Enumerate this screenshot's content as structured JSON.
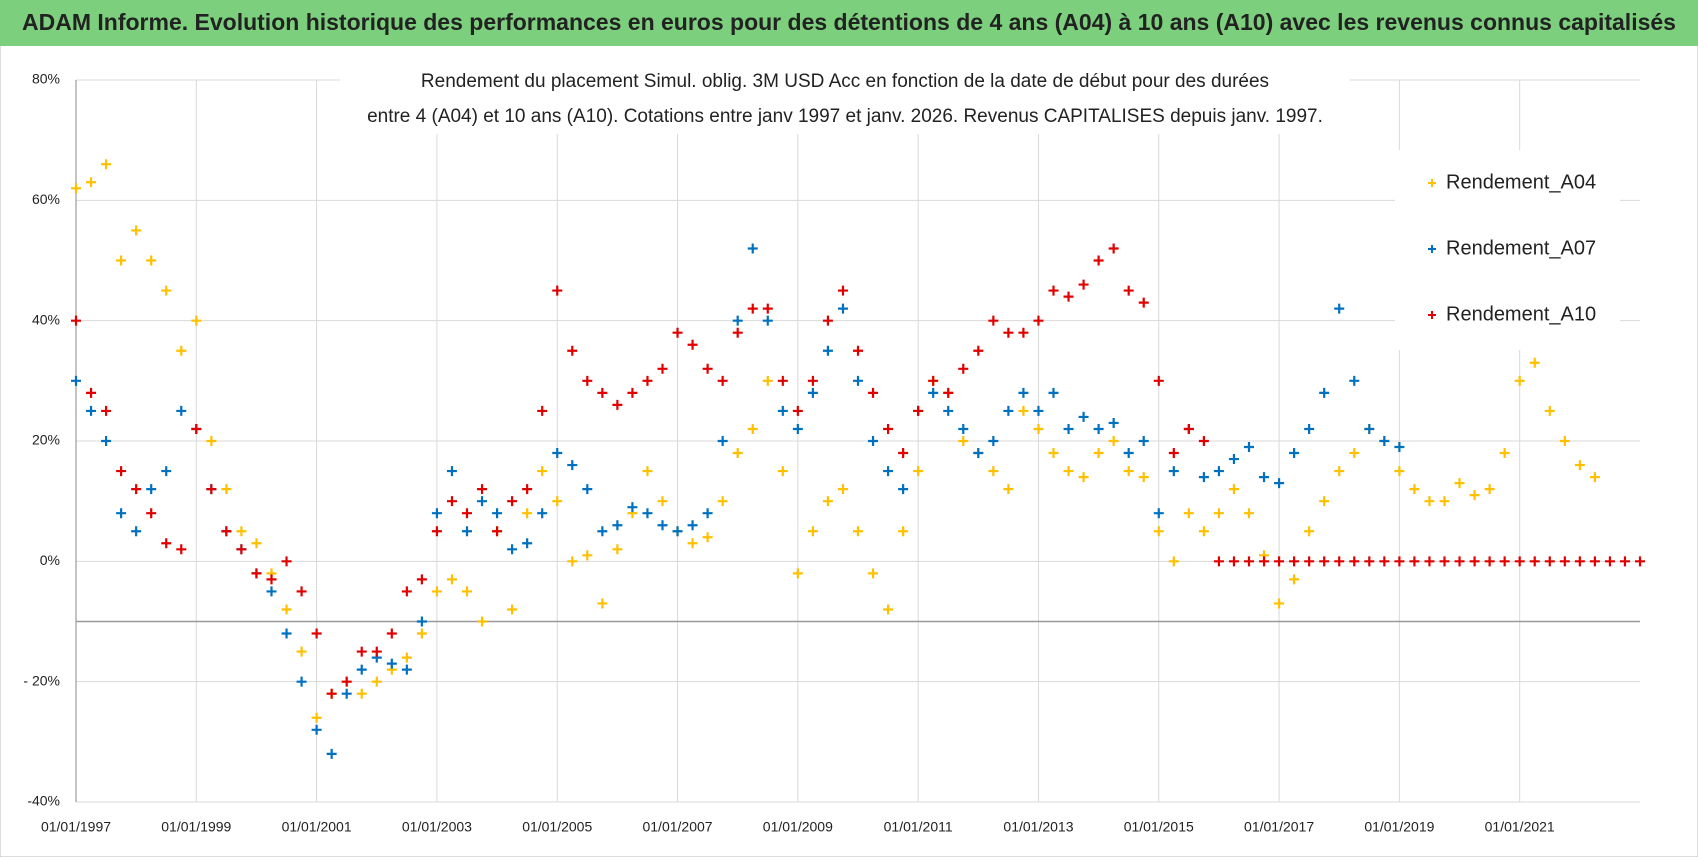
{
  "header": {
    "title": "ADAM Informe. Evolution historique des performances en euros pour des détentions de 4 ans (A04) à 10 ans (A10) avec les revenus connus capitalisés"
  },
  "chart_data": {
    "type": "scatter",
    "subtitle": [
      "Rendement du placement Simul. oblig. 3M USD Acc en fonction de la date de début pour des durées",
      "entre 4 (A04) et 10 ans (A10). Cotations entre janv 1997 et janv. 2026. Revenus CAPITALISES depuis janv. 1997."
    ],
    "x": [
      1997,
      1997.25,
      1997.5,
      1997.75,
      1998,
      1998.25,
      1998.5,
      1998.75,
      1999,
      1999.25,
      1999.5,
      1999.75,
      2000,
      2000.25,
      2000.5,
      2000.75,
      2001,
      2001.25,
      2001.5,
      2001.75,
      2002,
      2002.25,
      2002.5,
      2002.75,
      2003,
      2003.25,
      2003.5,
      2003.75,
      2004,
      2004.25,
      2004.5,
      2004.75,
      2005,
      2005.25,
      2005.5,
      2005.75,
      2006,
      2006.25,
      2006.5,
      2006.75,
      2007,
      2007.25,
      2007.5,
      2007.75,
      2008,
      2008.25,
      2008.5,
      2008.75,
      2009,
      2009.25,
      2009.5,
      2009.75,
      2010,
      2010.25,
      2010.5,
      2010.75,
      2011,
      2011.25,
      2011.5,
      2011.75,
      2012,
      2012.25,
      2012.5,
      2012.75,
      2013,
      2013.25,
      2013.5,
      2013.75,
      2014,
      2014.25,
      2014.5,
      2014.75,
      2015,
      2015.25,
      2015.5,
      2015.75,
      2016,
      2016.25,
      2016.5,
      2016.75,
      2017,
      2017.25,
      2017.5,
      2017.75,
      2018,
      2018.25,
      2018.5,
      2018.75,
      2019,
      2019.25,
      2019.5,
      2019.75,
      2020,
      2020.25,
      2020.5,
      2020.75,
      2021,
      2021.25,
      2021.5,
      2021.75,
      2022,
      2022.25,
      2022.5,
      2022.75,
      2023
    ],
    "series": [
      {
        "name": "Rendement_A04",
        "color": "#ffc000",
        "values": [
          62,
          63,
          66,
          50,
          55,
          50,
          45,
          35,
          40,
          20,
          12,
          5,
          3,
          -2,
          -8,
          -15,
          -26,
          -22,
          -20,
          -22,
          -20,
          -18,
          -16,
          -12,
          -5,
          -3,
          -5,
          -10,
          5,
          -8,
          8,
          15,
          10,
          0,
          1,
          -7,
          2,
          8,
          15,
          10,
          5,
          3,
          4,
          10,
          18,
          22,
          30,
          15,
          -2,
          5,
          10,
          12,
          5,
          -2,
          -8,
          5,
          15,
          30,
          28,
          20,
          18,
          15,
          12,
          25,
          22,
          18,
          15,
          14,
          18,
          20,
          15,
          14,
          5,
          0,
          8,
          5,
          8,
          12,
          8,
          1,
          -7,
          -3,
          5,
          10,
          15,
          18,
          22,
          20,
          15,
          12,
          10,
          10,
          13,
          11,
          12,
          18,
          30,
          33,
          25,
          20,
          16,
          14,
          null,
          null,
          null
        ]
      },
      {
        "name": "Rendement_A07",
        "color": "#0070c0",
        "values": [
          30,
          25,
          20,
          8,
          5,
          12,
          15,
          25,
          22,
          12,
          5,
          2,
          -2,
          -5,
          -12,
          -20,
          -28,
          -32,
          -22,
          -18,
          -16,
          -17,
          -18,
          -10,
          8,
          15,
          5,
          10,
          8,
          2,
          3,
          8,
          18,
          16,
          12,
          5,
          6,
          9,
          8,
          6,
          5,
          6,
          8,
          20,
          40,
          52,
          40,
          25,
          22,
          28,
          35,
          42,
          30,
          20,
          15,
          12,
          25,
          28,
          25,
          22,
          18,
          20,
          25,
          28,
          25,
          28,
          22,
          24,
          22,
          23,
          18,
          20,
          8,
          15,
          22,
          14,
          15,
          17,
          19,
          14,
          13,
          18,
          22,
          28,
          42,
          30,
          22,
          20,
          19,
          null,
          null,
          null,
          null,
          null,
          null,
          null,
          null,
          null,
          null,
          null,
          null,
          null,
          null,
          null,
          null
        ]
      },
      {
        "name": "Rendement_A10",
        "color": "#e00000",
        "values": [
          40,
          28,
          25,
          15,
          12,
          8,
          3,
          2,
          22,
          12,
          5,
          2,
          -2,
          -3,
          0,
          -5,
          -12,
          -22,
          -20,
          -15,
          -15,
          -12,
          -5,
          -3,
          5,
          10,
          8,
          12,
          5,
          10,
          12,
          25,
          45,
          35,
          30,
          28,
          26,
          28,
          30,
          32,
          38,
          36,
          32,
          30,
          38,
          42,
          42,
          30,
          25,
          30,
          40,
          45,
          35,
          28,
          22,
          18,
          25,
          30,
          28,
          32,
          35,
          40,
          38,
          38,
          40,
          45,
          44,
          46,
          50,
          52,
          45,
          43,
          30,
          18,
          22,
          20,
          0,
          0,
          0,
          0,
          0,
          0,
          0,
          0,
          0,
          0,
          0,
          0,
          0,
          0,
          0,
          0,
          0,
          0,
          0,
          0,
          0,
          0,
          0,
          0,
          0,
          0,
          0,
          0,
          0
        ]
      }
    ],
    "xlim": [
      1997,
      2023
    ],
    "xticks": [
      {
        "value": 1997,
        "label": "01/01/1997"
      },
      {
        "value": 1999,
        "label": "01/01/1999"
      },
      {
        "value": 2001,
        "label": "01/01/2001"
      },
      {
        "value": 2003,
        "label": "01/01/2003"
      },
      {
        "value": 2005,
        "label": "01/01/2005"
      },
      {
        "value": 2007,
        "label": "01/01/2007"
      },
      {
        "value": 2009,
        "label": "01/01/2009"
      },
      {
        "value": 2011,
        "label": "01/01/2011"
      },
      {
        "value": 2013,
        "label": "01/01/2013"
      },
      {
        "value": 2015,
        "label": "01/01/2015"
      },
      {
        "value": 2017,
        "label": "01/01/2017"
      },
      {
        "value": 2019,
        "label": "01/01/2019"
      },
      {
        "value": 2021,
        "label": "01/01/2021"
      }
    ],
    "ylim": [
      -40,
      80
    ],
    "yticks": [
      {
        "value": -40,
        "label": "-40%"
      },
      {
        "value": -20,
        "label": "- 20%"
      },
      {
        "value": 0,
        "label": "0%"
      },
      {
        "value": 20,
        "label": "20%"
      },
      {
        "value": 40,
        "label": "40%"
      },
      {
        "value": 60,
        "label": "60%"
      },
      {
        "value": 80,
        "label": "80%"
      }
    ],
    "xaxis_at": -10,
    "grid": true,
    "legend": "upper right"
  }
}
